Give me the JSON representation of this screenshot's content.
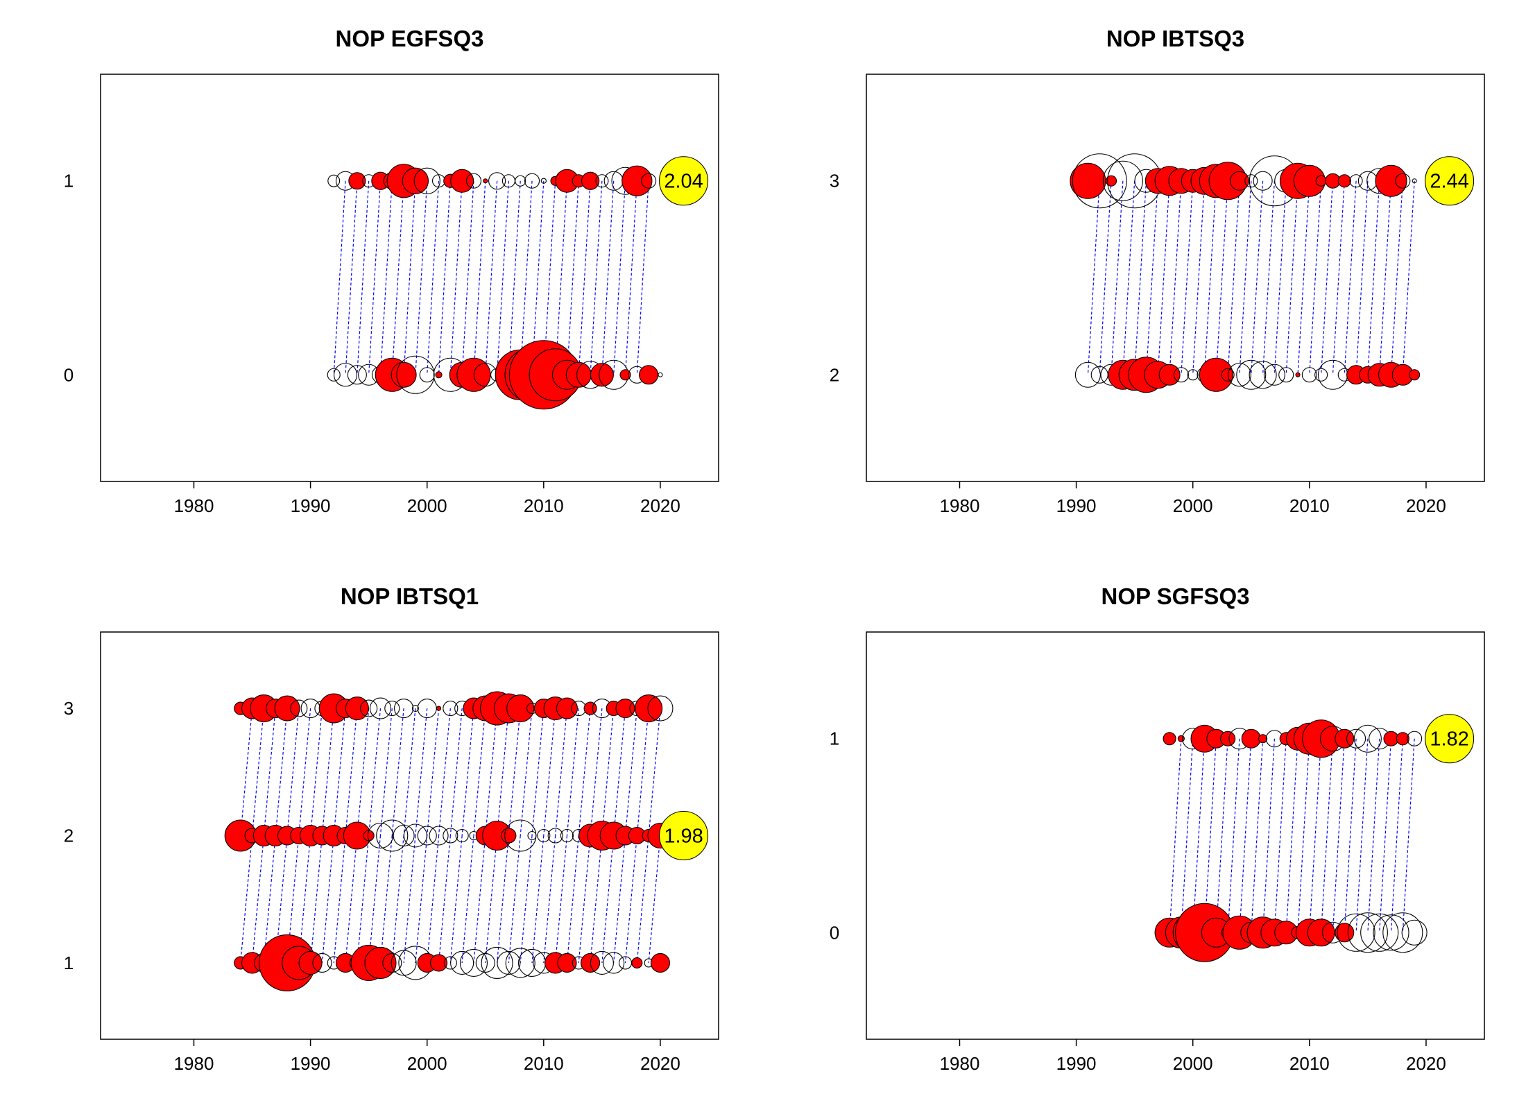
{
  "colors": {
    "positive": "#ff0000",
    "negative_fill": "none",
    "outline": "#000000",
    "link": "#0000ff",
    "highlight": "#ffff00",
    "frame": "#000000"
  },
  "chart_data": [
    {
      "type": "scatter",
      "title": "NOP EGFSQ3",
      "xlim": [
        1972,
        2025
      ],
      "ylim": [
        -0.55,
        1.55
      ],
      "x_ticks": [
        "1980",
        "1990",
        "2000",
        "2010",
        "2020"
      ],
      "y_ticks": [
        "0",
        "1"
      ],
      "grid": false,
      "series": [
        {
          "y": 1,
          "x": [
            1992,
            1993,
            1994,
            1995,
            1996,
            1997,
            1998,
            1999,
            2000,
            2001,
            2002,
            2003,
            2004,
            2005,
            2006,
            2007,
            2008,
            2009,
            2010,
            2011,
            2012,
            2013,
            2014,
            2015,
            2016,
            2017,
            2018,
            2019
          ],
          "residual": [
            -0.28,
            -0.45,
            0.4,
            -0.3,
            0.42,
            0.4,
            0.8,
            0.62,
            -0.62,
            -0.3,
            0.32,
            0.55,
            -0.35,
            0.1,
            -0.4,
            -0.3,
            -0.25,
            -0.35,
            -0.12,
            0.22,
            0.55,
            0.3,
            0.42,
            -0.3,
            -0.45,
            -0.65,
            0.72,
            -0.35
          ]
        },
        {
          "y": 0,
          "x": [
            1992,
            1993,
            1994,
            1995,
            1996,
            1997,
            1998,
            1999,
            2000,
            2001,
            2002,
            2003,
            2004,
            2005,
            2006,
            2007,
            2008,
            2009,
            2010,
            2011,
            2012,
            2013,
            2014,
            2015,
            2016,
            2017,
            2018,
            2019,
            2020
          ],
          "residual": [
            -0.3,
            -0.55,
            -0.45,
            -0.5,
            -0.4,
            0.8,
            0.6,
            -0.9,
            -0.35,
            0.15,
            -0.8,
            0.6,
            0.8,
            -0.55,
            -0.3,
            0.4,
            1.2,
            1.3,
            1.65,
            1.25,
            0.7,
            0.6,
            -0.65,
            0.55,
            -0.7,
            0.25,
            -0.4,
            0.45,
            -0.1
          ]
        }
      ],
      "highlight": {
        "x": 2022,
        "y": 1,
        "label": "2.04"
      }
    },
    {
      "type": "scatter",
      "title": "NOP IBTSQ3",
      "xlim": [
        1972,
        2025
      ],
      "ylim": [
        1.45,
        3.55
      ],
      "x_ticks": [
        "1980",
        "1990",
        "2000",
        "2010",
        "2020"
      ],
      "y_ticks": [
        "2",
        "3"
      ],
      "grid": false,
      "series": [
        {
          "y": 3,
          "x": [
            1991,
            1992,
            1993,
            1994,
            1995,
            1996,
            1997,
            1998,
            1999,
            2000,
            2001,
            2002,
            2003,
            2004,
            2005,
            2006,
            2007,
            2008,
            2009,
            2010,
            2011,
            2012,
            2013,
            2014,
            2015,
            2016,
            2017,
            2018,
            2019
          ],
          "residual": [
            0.85,
            -1.3,
            0.25,
            -0.95,
            -1.3,
            -0.55,
            0.6,
            0.7,
            0.6,
            0.55,
            0.65,
            0.8,
            0.9,
            0.45,
            -0.3,
            -0.45,
            -1.2,
            -0.55,
            0.85,
            0.75,
            0.25,
            0.35,
            0.3,
            -0.3,
            -0.45,
            -0.6,
            0.75,
            -0.35,
            0.0
          ]
        },
        {
          "y": 2,
          "x": [
            1991,
            1992,
            1993,
            1994,
            1995,
            1996,
            1997,
            1998,
            1999,
            2000,
            2001,
            2002,
            2003,
            2004,
            2005,
            2006,
            2007,
            2008,
            2009,
            2010,
            2011,
            2012,
            2013,
            2014,
            2015,
            2016,
            2017,
            2018,
            2019
          ],
          "residual": [
            -0.6,
            -0.4,
            -0.5,
            0.7,
            0.75,
            0.85,
            0.65,
            0.5,
            -0.35,
            -0.25,
            -0.35,
            0.8,
            -0.3,
            -0.55,
            -0.7,
            -0.65,
            -0.5,
            -0.35,
            0.1,
            -0.35,
            -0.3,
            -0.7,
            -0.3,
            0.45,
            0.4,
            0.55,
            0.6,
            0.5,
            0.25
          ]
        }
      ],
      "highlight": {
        "x": 2022,
        "y": 3,
        "label": "2.44"
      }
    },
    {
      "type": "scatter",
      "title": "NOP IBTSQ1",
      "xlim": [
        1972,
        2025
      ],
      "ylim": [
        0.4,
        3.6
      ],
      "x_ticks": [
        "1980",
        "1990",
        "2000",
        "2010",
        "2020"
      ],
      "y_ticks": [
        "1",
        "2",
        "3"
      ],
      "grid": false,
      "series": [
        {
          "y": 3,
          "x": [
            1984,
            1985,
            1986,
            1987,
            1988,
            1989,
            1990,
            1991,
            1992,
            1993,
            1994,
            1995,
            1996,
            1997,
            1998,
            1999,
            2000,
            2001,
            2002,
            2003,
            2004,
            2005,
            2006,
            2007,
            2008,
            2009,
            2010,
            2011,
            2012,
            2013,
            2014,
            2015,
            2016,
            2017,
            2018,
            2019,
            2020
          ],
          "residual": [
            0.3,
            0.5,
            0.65,
            0.45,
            0.6,
            -0.4,
            -0.45,
            -0.35,
            0.7,
            0.45,
            0.55,
            -0.4,
            -0.5,
            -0.35,
            -0.45,
            -0.15,
            -0.45,
            0.1,
            -0.35,
            -0.35,
            0.5,
            0.6,
            0.8,
            0.7,
            0.65,
            -0.25,
            0.45,
            0.55,
            0.5,
            -0.35,
            0.3,
            -0.45,
            0.35,
            0.45,
            -0.35,
            0.65,
            -0.6
          ]
        },
        {
          "y": 2,
          "x": [
            1984,
            1985,
            1986,
            1987,
            1988,
            1989,
            1990,
            1991,
            1992,
            1993,
            1994,
            1995,
            1996,
            1997,
            1998,
            1999,
            2000,
            2001,
            2002,
            2003,
            2004,
            2005,
            2006,
            2007,
            2008,
            2009,
            2010,
            2011,
            2012,
            2013,
            2014,
            2015,
            2016,
            2017,
            2018,
            2019,
            2020
          ],
          "residual": [
            0.75,
            0.35,
            0.5,
            0.5,
            0.45,
            0.4,
            0.5,
            0.45,
            0.5,
            0.4,
            0.65,
            0.25,
            -0.6,
            -0.75,
            -0.5,
            -0.55,
            -0.45,
            -0.45,
            -0.35,
            -0.3,
            -0.2,
            0.45,
            0.7,
            0.35,
            -0.75,
            -0.2,
            -0.3,
            -0.35,
            -0.3,
            -0.3,
            0.55,
            0.7,
            0.65,
            0.45,
            0.4,
            0.3,
            0.6
          ]
        },
        {
          "y": 1,
          "x": [
            1984,
            1985,
            1986,
            1987,
            1988,
            1989,
            1990,
            1991,
            1992,
            1993,
            1994,
            1995,
            1996,
            1997,
            1998,
            1999,
            2000,
            2001,
            2002,
            2003,
            2004,
            2005,
            2006,
            2007,
            2008,
            2009,
            2010,
            2011,
            2012,
            2013,
            2014,
            2015,
            2016,
            2017,
            2018,
            2019,
            2020
          ],
          "residual": [
            0.3,
            0.5,
            0.45,
            -0.5,
            1.35,
            0.8,
            0.55,
            -0.45,
            -0.3,
            0.45,
            -0.35,
            0.85,
            0.75,
            -0.45,
            -0.6,
            -0.8,
            0.45,
            0.4,
            -0.3,
            -0.55,
            -0.65,
            -0.45,
            -0.75,
            -0.55,
            -0.7,
            -0.65,
            -0.5,
            0.5,
            0.45,
            -0.3,
            0.45,
            -0.55,
            -0.5,
            -0.3,
            0.25,
            -0.2,
            0.45
          ]
        }
      ],
      "highlight": {
        "x": 2022,
        "y": 2,
        "label": "1.98"
      }
    },
    {
      "type": "scatter",
      "title": "NOP SGFSQ3",
      "xlim": [
        1972,
        2025
      ],
      "ylim": [
        -0.55,
        1.55
      ],
      "x_ticks": [
        "1980",
        "1990",
        "2000",
        "2010",
        "2020"
      ],
      "y_ticks": [
        "0",
        "1"
      ],
      "grid": false,
      "series": [
        {
          "y": 1,
          "x": [
            1998,
            1999,
            2000,
            2001,
            2002,
            2003,
            2004,
            2005,
            2006,
            2007,
            2008,
            2009,
            2010,
            2011,
            2012,
            2013,
            2014,
            2015,
            2016,
            2017,
            2018,
            2019
          ],
          "residual": [
            0.3,
            0.15,
            -0.5,
            0.65,
            0.45,
            0.35,
            -0.5,
            0.45,
            0.2,
            -0.4,
            0.3,
            0.55,
            0.75,
            0.9,
            -0.6,
            0.45,
            -0.45,
            -0.65,
            -0.5,
            0.35,
            0.3,
            -0.35
          ]
        },
        {
          "y": 0,
          "x": [
            1998,
            1999,
            2000,
            2001,
            2002,
            2003,
            2004,
            2005,
            2006,
            2007,
            2008,
            2009,
            2010,
            2011,
            2012,
            2013,
            2014,
            2015,
            2016,
            2017,
            2018,
            2019
          ],
          "residual": [
            0.7,
            0.75,
            0.95,
            1.4,
            0.7,
            -0.3,
            0.8,
            0.5,
            0.75,
            0.65,
            0.55,
            0.3,
            0.65,
            0.65,
            -0.5,
            0.45,
            -0.9,
            -0.95,
            -0.9,
            -0.85,
            -0.95,
            -0.6
          ]
        }
      ],
      "highlight": {
        "x": 2022,
        "y": 1,
        "label": "1.82"
      }
    }
  ]
}
